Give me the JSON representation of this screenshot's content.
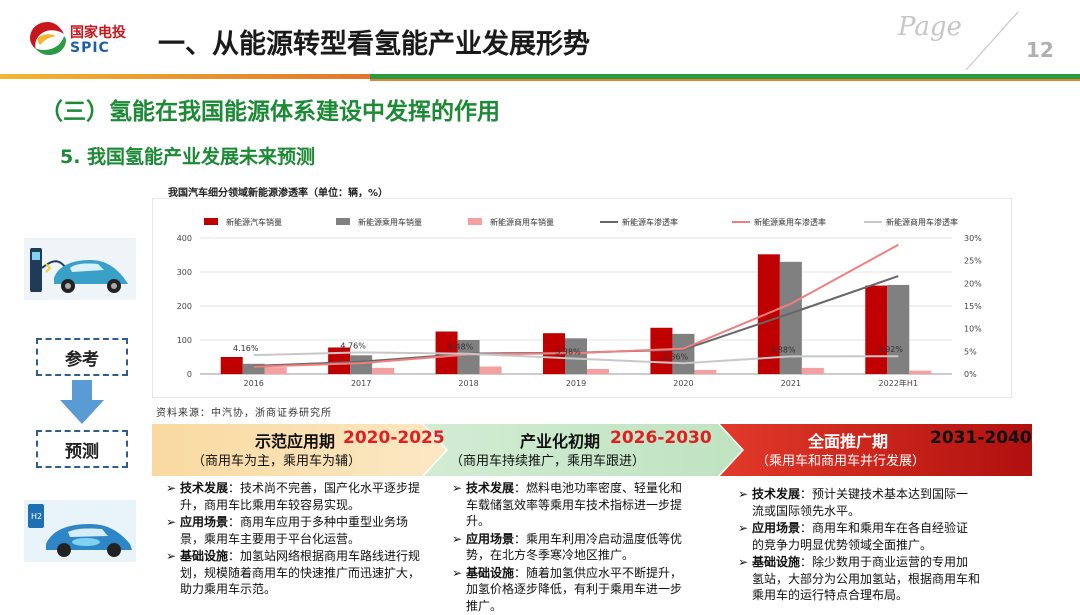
{
  "header": {
    "logo_cn": "国家电投",
    "logo_en": "SPIC",
    "title": "一、从能源转型看氢能产业发展形势",
    "page_word": "Page",
    "page_number": "12"
  },
  "section_title": "（三）氢能在我国能源体系建设中发挥的作用",
  "sub_title": "5. 我国氢能产业发展未来预测",
  "chart_caption": "我国汽车细分领域新能源渗透率（单位：辆，%）",
  "chart_source": "资料来源：中汽协，浙商证券研究所",
  "chart_data": {
    "type": "bar",
    "categories": [
      "2016",
      "2017",
      "2018",
      "2019",
      "2020",
      "2021",
      "2022年H1"
    ],
    "series": [
      {
        "name": "新能源汽车销量",
        "kind": "bar",
        "axis": "left",
        "color": "#c00000",
        "values": [
          50,
          78,
          125,
          120,
          136,
          352,
          260
        ]
      },
      {
        "name": "新能源乘用车销量",
        "kind": "bar",
        "axis": "left",
        "color": "#808080",
        "values": [
          30,
          55,
          100,
          105,
          118,
          330,
          262
        ]
      },
      {
        "name": "新能源商用车销量",
        "kind": "bar",
        "axis": "left",
        "color": "#f4a0a0",
        "values": [
          20,
          18,
          22,
          15,
          12,
          18,
          10
        ]
      },
      {
        "name": "新能源车渗透率",
        "kind": "line",
        "axis": "right",
        "color": "#666666",
        "values": [
          1.8,
          2.7,
          4.5,
          4.7,
          5.4,
          13.4,
          21.6
        ]
      },
      {
        "name": "新能源乘用车渗透率",
        "kind": "line",
        "axis": "right",
        "color": "#f08080",
        "values": [
          1.6,
          2.4,
          4.3,
          4.6,
          5.6,
          15.5,
          28.5
        ]
      },
      {
        "name": "新能源商用车渗透率",
        "kind": "line",
        "axis": "right",
        "color": "#c8c8c8",
        "values": [
          4.16,
          4.76,
          4.48,
          3.38,
          2.36,
          3.88,
          3.92
        ]
      }
    ],
    "data_labels": [
      "4.16%",
      "4.76%",
      "4.48%",
      "3.38%",
      "2.36%",
      "3.88%",
      "3.92%"
    ],
    "ylim_left": [
      0,
      400
    ],
    "yticks_left": [
      "0",
      "100",
      "200",
      "300",
      "400"
    ],
    "ylim_right": [
      0,
      30
    ],
    "yticks_right": [
      "0%",
      "5%",
      "10%",
      "15%",
      "20%",
      "25%",
      "30%"
    ],
    "grid": true,
    "legend_position": "top"
  },
  "left_column": {
    "reference_label": "参考",
    "prediction_label": "预测"
  },
  "stages": [
    {
      "title": "示范应用期",
      "years": "2020-2025",
      "subtitle": "（商用车为主，乘用车为辅）",
      "items": [
        {
          "key": "技术发展",
          "text": "：技术尚不完善，国产化水平逐步提升，商用车比乘用车较容易实现。"
        },
        {
          "key": "应用场景",
          "text": "：商用车应用于多种中重型业务场景，乘用车主要用于平台化运营。"
        },
        {
          "key": "基础设施",
          "text": "：加氢站网络根据商用车路线进行规划，规模随着商用车的快速推广而迅速扩大，助力乘用车示范。"
        }
      ]
    },
    {
      "title": "产业化初期",
      "years": "2026-2030",
      "subtitle": "（商用车持续推广，乘用车跟进）",
      "items": [
        {
          "key": "技术发展",
          "text": "：燃料电池功率密度、轻量化和车载储氢效率等乘用车技术指标进一步提升。"
        },
        {
          "key": "应用场景",
          "text": "：乘用车利用冷启动温度低等优势，在北方冬季寒冷地区推广。"
        },
        {
          "key": "基础设施",
          "text": "：随着加氢供应水平不断提升，加氢价格逐步降低，有利于乘用车进一步推广。"
        }
      ]
    },
    {
      "title": "全面推广期",
      "years": "2031-2040",
      "subtitle": "（乘用车和商用车并行发展）",
      "items": [
        {
          "key": "技术发展",
          "text": "：预计关键技术基本达到国际一流或国际领先水平。"
        },
        {
          "key": "应用场景",
          "text": "：商用车和乘用车在各自经验证的竞争力明显优势领域全面推广。"
        },
        {
          "key": "基础设施",
          "text": "：除少数用于商业运营的专用加氢站，大部分为公用加氢站，根据商用车和乘用车的运行特点合理布局。"
        }
      ]
    }
  ],
  "colors": {
    "green": "#1c8a35",
    "red": "#c00000",
    "year_red": "#e02020",
    "dark": "#111111"
  }
}
